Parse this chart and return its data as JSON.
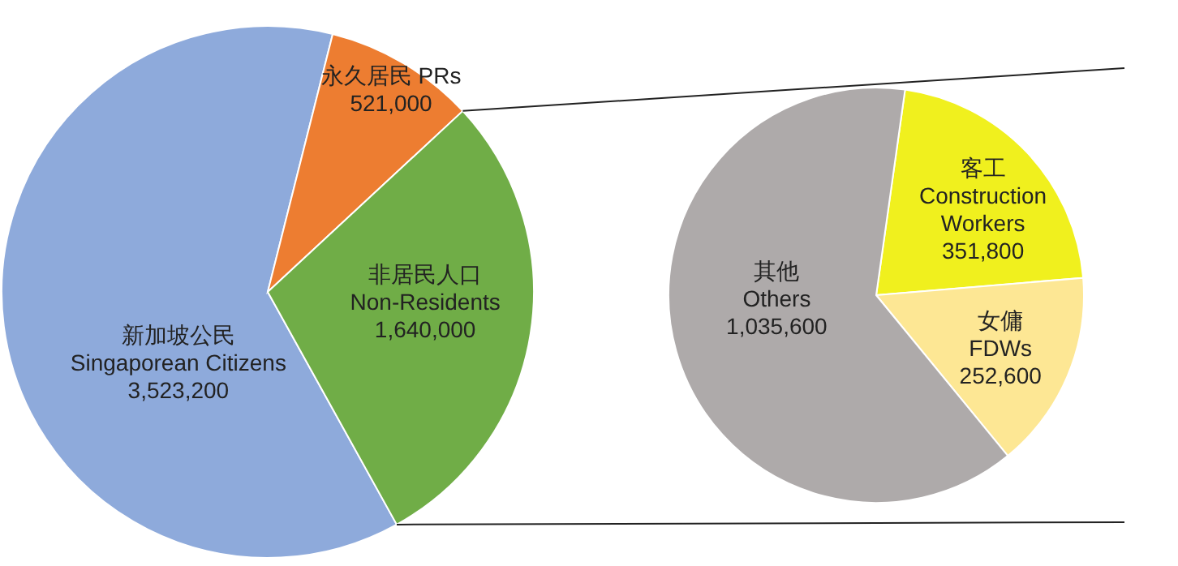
{
  "chart_data": [
    {
      "type": "pie",
      "categories": [
        "新加坡公民 Singaporean Citizens",
        "永久居民 PRs",
        "非居民人口 Non-Residents"
      ],
      "values": [
        3523200,
        521000,
        1640000
      ],
      "value_labels": [
        "3,523,200",
        "521,000",
        "1,640,000"
      ],
      "colors": [
        "#8eaadb",
        "#ed7d31",
        "#70ad47"
      ]
    },
    {
      "type": "pie",
      "categories": [
        "客工 Construction Workers",
        "女傭 FDWs",
        "其他 Others"
      ],
      "values": [
        351800,
        252600,
        1035600
      ],
      "value_labels": [
        "351,800",
        "252,600",
        "1,035,600"
      ],
      "colors": [
        "#f0f01e",
        "#fde794",
        "#aeaaaa"
      ]
    }
  ]
}
